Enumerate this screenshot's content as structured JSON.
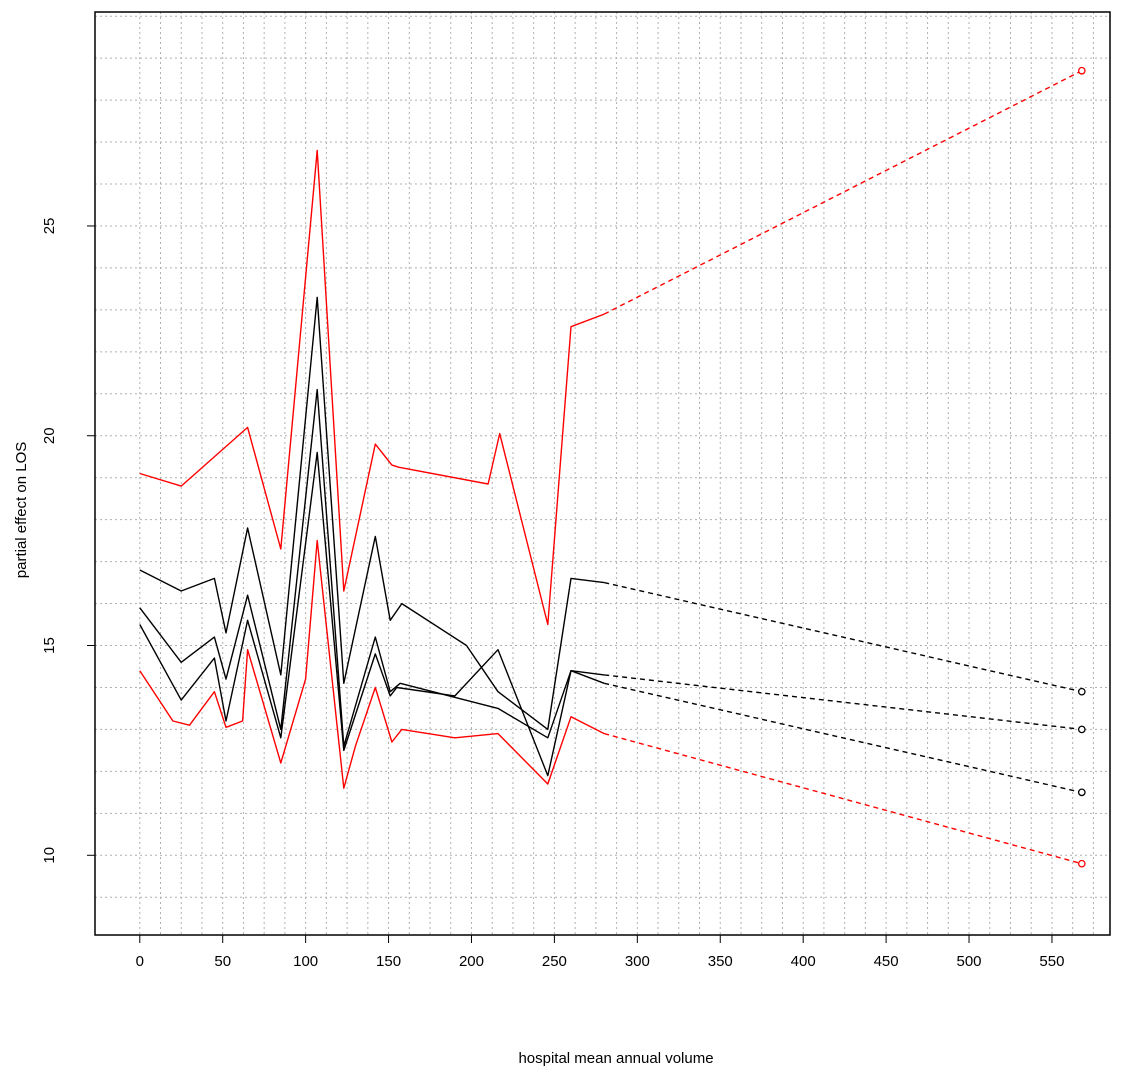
{
  "chart_data": {
    "type": "line",
    "title": "",
    "xlabel": "hospital mean annual volume",
    "ylabel": "partial effect on LOS",
    "xlim": [
      -27,
      585
    ],
    "ylim": [
      8.1,
      30.1
    ],
    "x_ticks": [
      0,
      50,
      100,
      150,
      200,
      250,
      300,
      350,
      400,
      450,
      500,
      550
    ],
    "y_ticks": [
      10,
      15,
      20,
      25
    ],
    "grid": true,
    "grid_x_step": 12.5,
    "grid_y_step": 1,
    "legend": "none",
    "series": [
      {
        "color": "#ff0000",
        "solid": [
          [
            0,
            19.1
          ],
          [
            25,
            18.8
          ],
          [
            65,
            20.2
          ],
          [
            85,
            17.3
          ],
          [
            107,
            26.8
          ],
          [
            123,
            16.3
          ],
          [
            142,
            19.8
          ],
          [
            152,
            19.3
          ],
          [
            156,
            19.25
          ],
          [
            210,
            18.85
          ],
          [
            217,
            20.05
          ],
          [
            246,
            15.5
          ],
          [
            260,
            22.6
          ],
          [
            280,
            22.9
          ]
        ],
        "dashed": [
          [
            280,
            22.9
          ],
          [
            568,
            28.7
          ]
        ],
        "end_marker": true
      },
      {
        "color": "#000000",
        "solid": [
          [
            0,
            16.8
          ],
          [
            25,
            16.3
          ],
          [
            45,
            16.6
          ],
          [
            52,
            15.3
          ],
          [
            65,
            17.8
          ],
          [
            85,
            14.3
          ],
          [
            107,
            23.3
          ],
          [
            123,
            14.1
          ],
          [
            142,
            17.6
          ],
          [
            151,
            15.6
          ],
          [
            158,
            16.0
          ],
          [
            197,
            15.0
          ],
          [
            216,
            13.9
          ],
          [
            246,
            13.0
          ],
          [
            260,
            16.6
          ],
          [
            280,
            16.5
          ]
        ],
        "dashed": [
          [
            280,
            16.5
          ],
          [
            568,
            13.9
          ]
        ],
        "end_marker": true
      },
      {
        "color": "#000000",
        "solid": [
          [
            0,
            15.9
          ],
          [
            25,
            14.6
          ],
          [
            45,
            15.2
          ],
          [
            52,
            14.2
          ],
          [
            65,
            16.2
          ],
          [
            85,
            13.0
          ],
          [
            107,
            21.1
          ],
          [
            123,
            12.6
          ],
          [
            142,
            15.2
          ],
          [
            151,
            13.9
          ],
          [
            157,
            14.1
          ],
          [
            216,
            13.5
          ],
          [
            246,
            12.8
          ],
          [
            260,
            14.4
          ],
          [
            280,
            14.3
          ]
        ],
        "dashed": [
          [
            280,
            14.3
          ],
          [
            568,
            13.0
          ]
        ],
        "end_marker": true
      },
      {
        "color": "#000000",
        "solid": [
          [
            0,
            15.5
          ],
          [
            25,
            13.7
          ],
          [
            45,
            14.7
          ],
          [
            52,
            13.2
          ],
          [
            65,
            15.6
          ],
          [
            85,
            12.8
          ],
          [
            107,
            19.6
          ],
          [
            123,
            12.5
          ],
          [
            142,
            14.8
          ],
          [
            151,
            13.8
          ],
          [
            155,
            14.0
          ],
          [
            190,
            13.8
          ],
          [
            216,
            14.9
          ],
          [
            246,
            11.9
          ],
          [
            260,
            14.4
          ],
          [
            280,
            14.1
          ]
        ],
        "dashed": [
          [
            280,
            14.1
          ],
          [
            568,
            11.5
          ]
        ],
        "end_marker": true
      },
      {
        "color": "#ff0000",
        "solid": [
          [
            0,
            14.4
          ],
          [
            20,
            13.2
          ],
          [
            30,
            13.1
          ],
          [
            45,
            13.9
          ],
          [
            52,
            13.05
          ],
          [
            62,
            13.2
          ],
          [
            65,
            14.9
          ],
          [
            85,
            12.2
          ],
          [
            100,
            14.2
          ],
          [
            107,
            17.5
          ],
          [
            123,
            11.6
          ],
          [
            130,
            12.6
          ],
          [
            142,
            14.0
          ],
          [
            152,
            12.7
          ],
          [
            158,
            13.0
          ],
          [
            190,
            12.8
          ],
          [
            216,
            12.9
          ],
          [
            246,
            11.7
          ],
          [
            260,
            13.3
          ],
          [
            280,
            12.9
          ]
        ],
        "dashed": [
          [
            280,
            12.9
          ],
          [
            568,
            9.8
          ]
        ],
        "end_marker": true
      }
    ]
  }
}
